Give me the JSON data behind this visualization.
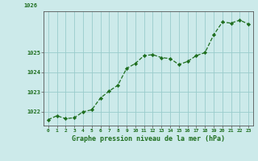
{
  "hours": [
    0,
    1,
    2,
    3,
    4,
    5,
    6,
    7,
    8,
    9,
    10,
    11,
    12,
    13,
    14,
    15,
    16,
    17,
    18,
    19,
    20,
    21,
    22,
    23
  ],
  "pressure": [
    1021.6,
    1021.8,
    1021.65,
    1021.7,
    1022.0,
    1022.1,
    1022.7,
    1023.05,
    1023.35,
    1024.2,
    1024.45,
    1024.85,
    1024.9,
    1024.75,
    1024.7,
    1024.4,
    1024.55,
    1024.85,
    1025.0,
    1025.9,
    1026.55,
    1026.5,
    1026.65,
    1026.45
  ],
  "line_color": "#1e6e1e",
  "marker_color": "#1e6e1e",
  "bg_color": "#cceaea",
  "grid_color": "#99cccc",
  "xlabel": "Graphe pression niveau de la mer (hPa)",
  "xlabel_color": "#1e6e1e",
  "ylabel_ticks": [
    1022,
    1023,
    1024,
    1025
  ],
  "top_ylabel": "1026",
  "ylim": [
    1021.3,
    1027.1
  ],
  "xlim": [
    -0.5,
    23.5
  ]
}
